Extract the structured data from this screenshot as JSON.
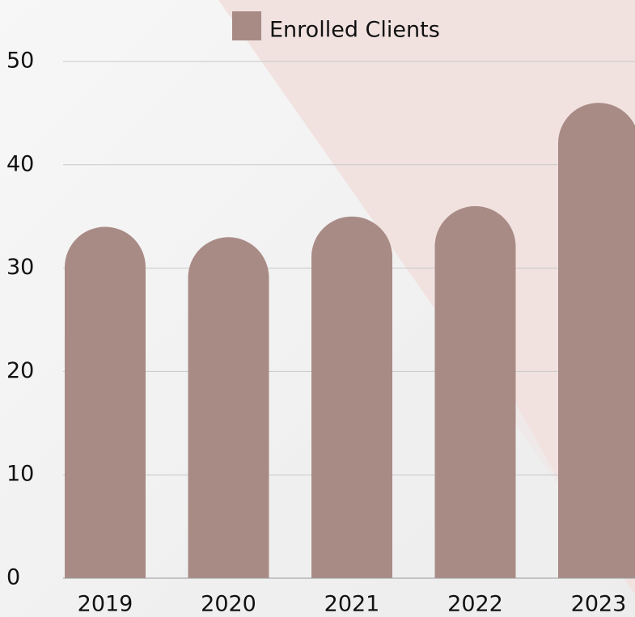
{
  "chart_data": {
    "type": "bar",
    "categories": [
      "2019",
      "2020",
      "2021",
      "2022",
      "2023"
    ],
    "series": [
      {
        "name": "Enrolled Clients",
        "color": "#a98b86",
        "values": [
          34,
          33,
          35,
          36,
          46
        ]
      }
    ],
    "ylim": [
      0,
      50
    ],
    "yticks": [
      0,
      10,
      20,
      30,
      40,
      50
    ],
    "grid": true,
    "legend": "top"
  }
}
